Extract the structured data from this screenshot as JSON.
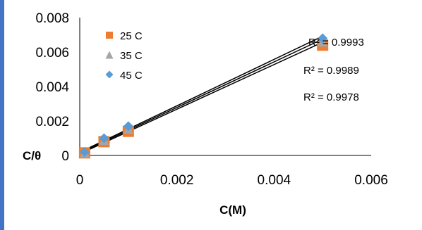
{
  "chart_data": {
    "type": "scatter",
    "xlabel": "C(M)",
    "ylabel": "C/θ",
    "xlim": [
      0,
      0.006
    ],
    "ylim": [
      0,
      0.008
    ],
    "x_ticks": [
      "0",
      "0.002",
      "0.004",
      "0.006"
    ],
    "y_ticks": [
      "0",
      "0.002",
      "0.004",
      "0.006",
      "0.008"
    ],
    "grid": false,
    "legend": "top-left",
    "series": [
      {
        "name": "25 C",
        "marker": "square",
        "color": "#ED7D31",
        "x": [
          0.0001,
          0.0005,
          0.001,
          0.005
        ],
        "y": [
          0.00015,
          0.0008,
          0.0014,
          0.0064
        ],
        "trendline": {
          "x": [
            0.0001,
            0.005
          ],
          "y": [
            0.00022,
            0.00657
          ]
        },
        "r2_label": "R² = 0.9993"
      },
      {
        "name": "35 C",
        "marker": "triangle",
        "color": "#A5A5A5",
        "x": [
          0.0001,
          0.0005,
          0.001,
          0.005
        ],
        "y": [
          0.00017,
          0.0009,
          0.00155,
          0.0066
        ],
        "trendline": {
          "x": [
            0.0001,
            0.005
          ],
          "y": [
            0.00027,
            0.00675
          ]
        },
        "r2_label": "R² = 0.9989"
      },
      {
        "name": "45 C",
        "marker": "diamond",
        "color": "#5B9BD5",
        "x": [
          0.0001,
          0.0005,
          0.001,
          0.005
        ],
        "y": [
          0.0002,
          0.001,
          0.0017,
          0.0068
        ],
        "trendline": {
          "x": [
            0.0001,
            0.005
          ],
          "y": [
            0.00032,
            0.00692
          ]
        },
        "r2_label": "R² = 0.9978"
      }
    ]
  },
  "colors": {
    "frame_border": "#4472C4",
    "axis": "#000000"
  }
}
